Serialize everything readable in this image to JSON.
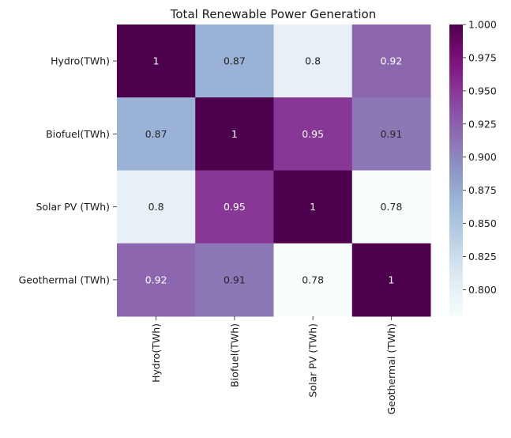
{
  "chart_data": {
    "type": "heatmap",
    "title": "Total Renewable Power Generation",
    "row_labels": [
      "Hydro(TWh)",
      "Biofuel(TWh)",
      "Solar PV (TWh)",
      "Geothermal (TWh)"
    ],
    "col_labels": [
      "Hydro(TWh)",
      "Biofuel(TWh)",
      "Solar PV (TWh)",
      "Geothermal (TWh)"
    ],
    "values": [
      [
        1.0,
        0.87,
        0.8,
        0.92
      ],
      [
        0.87,
        1.0,
        0.95,
        0.91
      ],
      [
        0.8,
        0.95,
        1.0,
        0.78
      ],
      [
        0.92,
        0.91,
        0.78,
        1.0
      ]
    ],
    "cell_labels": [
      [
        "1",
        "0.87",
        "0.8",
        "0.92"
      ],
      [
        "0.87",
        "1",
        "0.95",
        "0.91"
      ],
      [
        "0.8",
        "0.95",
        "1",
        "0.78"
      ],
      [
        "0.92",
        "0.91",
        "0.78",
        "1"
      ]
    ],
    "colormap": "BuPu",
    "colorbar": {
      "vmin": 0.78,
      "vmax": 1.0,
      "ticks": [
        0.8,
        0.825,
        0.85,
        0.875,
        0.9,
        0.925,
        0.95,
        0.975,
        1.0
      ],
      "tick_labels": [
        "0.800",
        "0.825",
        "0.850",
        "0.875",
        "0.900",
        "0.925",
        "0.950",
        "0.975",
        "1.000"
      ]
    },
    "text_colors": {
      "dark": "#262626",
      "light": "#ffffff"
    }
  }
}
